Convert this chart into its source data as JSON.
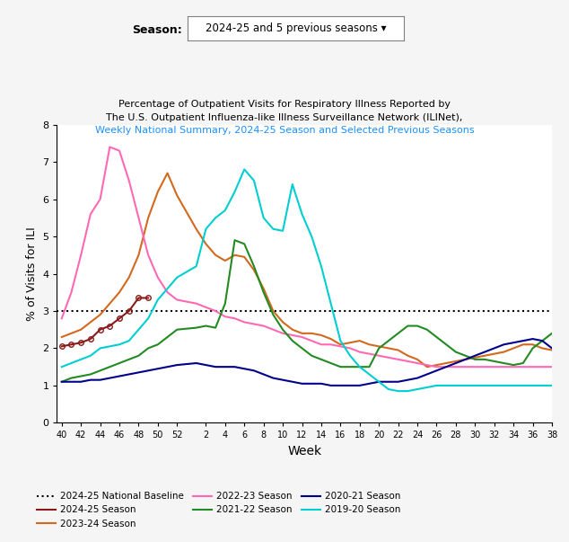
{
  "title_line1": "Percentage of Outpatient Visits for Respiratory Illness Reported by",
  "title_line2": "The U.S. Outpatient Influenza-like Illness Surveillance Network (ILINet),",
  "title_line3": "Weekly National Summary, 2024-25 Season and Selected Previous Seasons",
  "season_label": "Season:",
  "season_value": "2024-25 and 5 previous seasons ▾",
  "xlabel": "Week",
  "ylabel": "% of Visits for ILI",
  "ylim": [
    0,
    8
  ],
  "baseline_y": 3.0,
  "baseline_color": "#000000",
  "x_ticks": [
    40,
    42,
    44,
    46,
    48,
    50,
    52,
    2,
    4,
    6,
    8,
    10,
    12,
    14,
    16,
    18,
    20,
    22,
    24,
    26,
    28,
    30,
    32,
    34,
    36,
    38
  ],
  "seasons": {
    "2024-25": {
      "color": "#8B1A1A",
      "x": [
        40,
        41,
        42,
        43,
        44,
        45,
        46,
        47,
        48,
        49
      ],
      "y": [
        2.05,
        2.1,
        2.15,
        2.25,
        2.5,
        2.6,
        2.8,
        3.0,
        3.35,
        3.35
      ],
      "marker": "o",
      "markersize": 4,
      "linewidth": 1.5
    },
    "2023-24": {
      "color": "#D2691E",
      "x": [
        40,
        41,
        42,
        43,
        44,
        45,
        46,
        47,
        48,
        49,
        50,
        51,
        52,
        1,
        2,
        3,
        4,
        5,
        6,
        7,
        8,
        9,
        10,
        11,
        12,
        13,
        14,
        15,
        16,
        17,
        18,
        19,
        20,
        21,
        22,
        23,
        24,
        25,
        26,
        27,
        28,
        29,
        30,
        31,
        32,
        33,
        34,
        35,
        36,
        37,
        38
      ],
      "y": [
        2.3,
        2.4,
        2.5,
        2.7,
        2.9,
        3.2,
        3.5,
        3.9,
        4.5,
        5.5,
        6.2,
        6.7,
        6.1,
        5.2,
        4.8,
        4.5,
        4.35,
        4.5,
        4.45,
        4.1,
        3.6,
        3.0,
        2.7,
        2.5,
        2.4,
        2.4,
        2.35,
        2.25,
        2.1,
        2.15,
        2.2,
        2.1,
        2.05,
        2.0,
        1.95,
        1.8,
        1.7,
        1.5,
        1.55,
        1.6,
        1.65,
        1.7,
        1.75,
        1.8,
        1.85,
        1.9,
        2.0,
        2.1,
        2.1,
        2.0,
        1.95
      ],
      "marker": null,
      "markersize": 0,
      "linewidth": 1.5
    },
    "2022-23": {
      "color": "#FF69B4",
      "x": [
        40,
        41,
        42,
        43,
        44,
        45,
        46,
        47,
        48,
        49,
        50,
        51,
        52,
        1,
        2,
        3,
        4,
        5,
        6,
        7,
        8,
        9,
        10,
        11,
        12,
        13,
        14,
        15,
        16,
        17,
        18,
        19,
        20,
        21,
        22,
        23,
        24,
        25,
        26,
        27,
        28,
        29,
        30,
        31,
        32,
        33,
        34,
        35,
        36,
        37,
        38
      ],
      "y": [
        2.8,
        3.5,
        4.5,
        5.6,
        6.0,
        7.4,
        7.3,
        6.5,
        5.5,
        4.5,
        3.9,
        3.5,
        3.3,
        3.2,
        3.1,
        3.0,
        2.85,
        2.8,
        2.7,
        2.65,
        2.6,
        2.5,
        2.4,
        2.35,
        2.3,
        2.2,
        2.1,
        2.1,
        2.05,
        2.0,
        1.9,
        1.85,
        1.8,
        1.75,
        1.7,
        1.65,
        1.6,
        1.55,
        1.5,
        1.5,
        1.5,
        1.5,
        1.5,
        1.5,
        1.5,
        1.5,
        1.5,
        1.5,
        1.5,
        1.5,
        1.5
      ],
      "marker": null,
      "markersize": 0,
      "linewidth": 1.5
    },
    "2021-22": {
      "color": "#228B22",
      "x": [
        40,
        41,
        42,
        43,
        44,
        45,
        46,
        47,
        48,
        49,
        50,
        51,
        52,
        1,
        2,
        3,
        4,
        5,
        6,
        7,
        8,
        9,
        10,
        11,
        12,
        13,
        14,
        15,
        16,
        17,
        18,
        19,
        20,
        21,
        22,
        23,
        24,
        25,
        26,
        27,
        28,
        29,
        30,
        31,
        32,
        33,
        34,
        35,
        36,
        37,
        38
      ],
      "y": [
        1.1,
        1.2,
        1.25,
        1.3,
        1.4,
        1.5,
        1.6,
        1.7,
        1.8,
        2.0,
        2.1,
        2.3,
        2.5,
        2.55,
        2.6,
        2.55,
        3.2,
        4.9,
        4.8,
        4.2,
        3.5,
        2.9,
        2.5,
        2.2,
        2.0,
        1.8,
        1.7,
        1.6,
        1.5,
        1.5,
        1.5,
        1.5,
        2.0,
        2.2,
        2.4,
        2.6,
        2.6,
        2.5,
        2.3,
        2.1,
        1.9,
        1.8,
        1.7,
        1.7,
        1.65,
        1.6,
        1.55,
        1.6,
        2.0,
        2.2,
        2.4
      ],
      "marker": null,
      "markersize": 0,
      "linewidth": 1.5
    },
    "2020-21": {
      "color": "#00008B",
      "x": [
        40,
        41,
        42,
        43,
        44,
        45,
        46,
        47,
        48,
        49,
        50,
        51,
        52,
        1,
        2,
        3,
        4,
        5,
        6,
        7,
        8,
        9,
        10,
        11,
        12,
        13,
        14,
        15,
        16,
        17,
        18,
        19,
        20,
        21,
        22,
        23,
        24,
        25,
        26,
        27,
        28,
        29,
        30,
        31,
        32,
        33,
        34,
        35,
        36,
        37,
        38
      ],
      "y": [
        1.1,
        1.1,
        1.1,
        1.15,
        1.15,
        1.2,
        1.25,
        1.3,
        1.35,
        1.4,
        1.45,
        1.5,
        1.55,
        1.6,
        1.55,
        1.5,
        1.5,
        1.5,
        1.45,
        1.4,
        1.3,
        1.2,
        1.15,
        1.1,
        1.05,
        1.05,
        1.05,
        1.0,
        1.0,
        1.0,
        1.0,
        1.05,
        1.1,
        1.1,
        1.1,
        1.15,
        1.2,
        1.3,
        1.4,
        1.5,
        1.6,
        1.7,
        1.8,
        1.9,
        2.0,
        2.1,
        2.15,
        2.2,
        2.25,
        2.2,
        2.0
      ],
      "marker": null,
      "markersize": 0,
      "linewidth": 1.5
    },
    "2019-20": {
      "color": "#00CED1",
      "x": [
        40,
        41,
        42,
        43,
        44,
        45,
        46,
        47,
        48,
        49,
        50,
        51,
        52,
        1,
        2,
        3,
        4,
        5,
        6,
        7,
        8,
        9,
        10,
        11,
        12,
        13,
        14,
        15,
        16,
        17,
        18,
        19,
        20,
        21,
        22,
        23,
        24,
        25,
        26,
        27,
        28,
        29,
        30,
        31,
        32,
        33,
        34,
        35,
        36,
        37,
        38
      ],
      "y": [
        1.5,
        1.6,
        1.7,
        1.8,
        2.0,
        2.05,
        2.1,
        2.2,
        2.5,
        2.8,
        3.3,
        3.6,
        3.9,
        4.2,
        5.2,
        5.5,
        5.7,
        6.2,
        6.8,
        6.5,
        5.5,
        5.2,
        5.15,
        6.4,
        5.6,
        5.0,
        4.2,
        3.2,
        2.2,
        1.8,
        1.5,
        1.3,
        1.1,
        0.9,
        0.85,
        0.85,
        0.9,
        0.95,
        1.0,
        1.0,
        1.0,
        1.0,
        1.0,
        1.0,
        1.0,
        1.0,
        1.0,
        1.0,
        1.0,
        1.0,
        1.0
      ],
      "marker": null,
      "markersize": 0,
      "linewidth": 1.5
    }
  },
  "legend_items": [
    {
      "label": "2024-25 National Baseline",
      "color": "#000000",
      "linestyle": "dotted",
      "linewidth": 1.5
    },
    {
      "label": "2024-25 Season",
      "color": "#8B1A1A",
      "linestyle": "solid",
      "linewidth": 1.5
    },
    {
      "label": "2023-24 Season",
      "color": "#D2691E",
      "linestyle": "solid",
      "linewidth": 1.5
    },
    {
      "label": "2022-23 Season",
      "color": "#FF69B4",
      "linestyle": "solid",
      "linewidth": 1.5
    },
    {
      "label": "2021-22 Season",
      "color": "#228B22",
      "linestyle": "solid",
      "linewidth": 1.5
    },
    {
      "label": "2020-21 Season",
      "color": "#00008B",
      "linestyle": "solid",
      "linewidth": 1.5
    },
    {
      "label": "2019-20 Season",
      "color": "#00CED1",
      "linestyle": "solid",
      "linewidth": 1.5
    }
  ],
  "title_color": "#000000",
  "subtitle_color": "#1E90FF",
  "background_color": "#ffffff",
  "fig_background": "#f5f5f5"
}
